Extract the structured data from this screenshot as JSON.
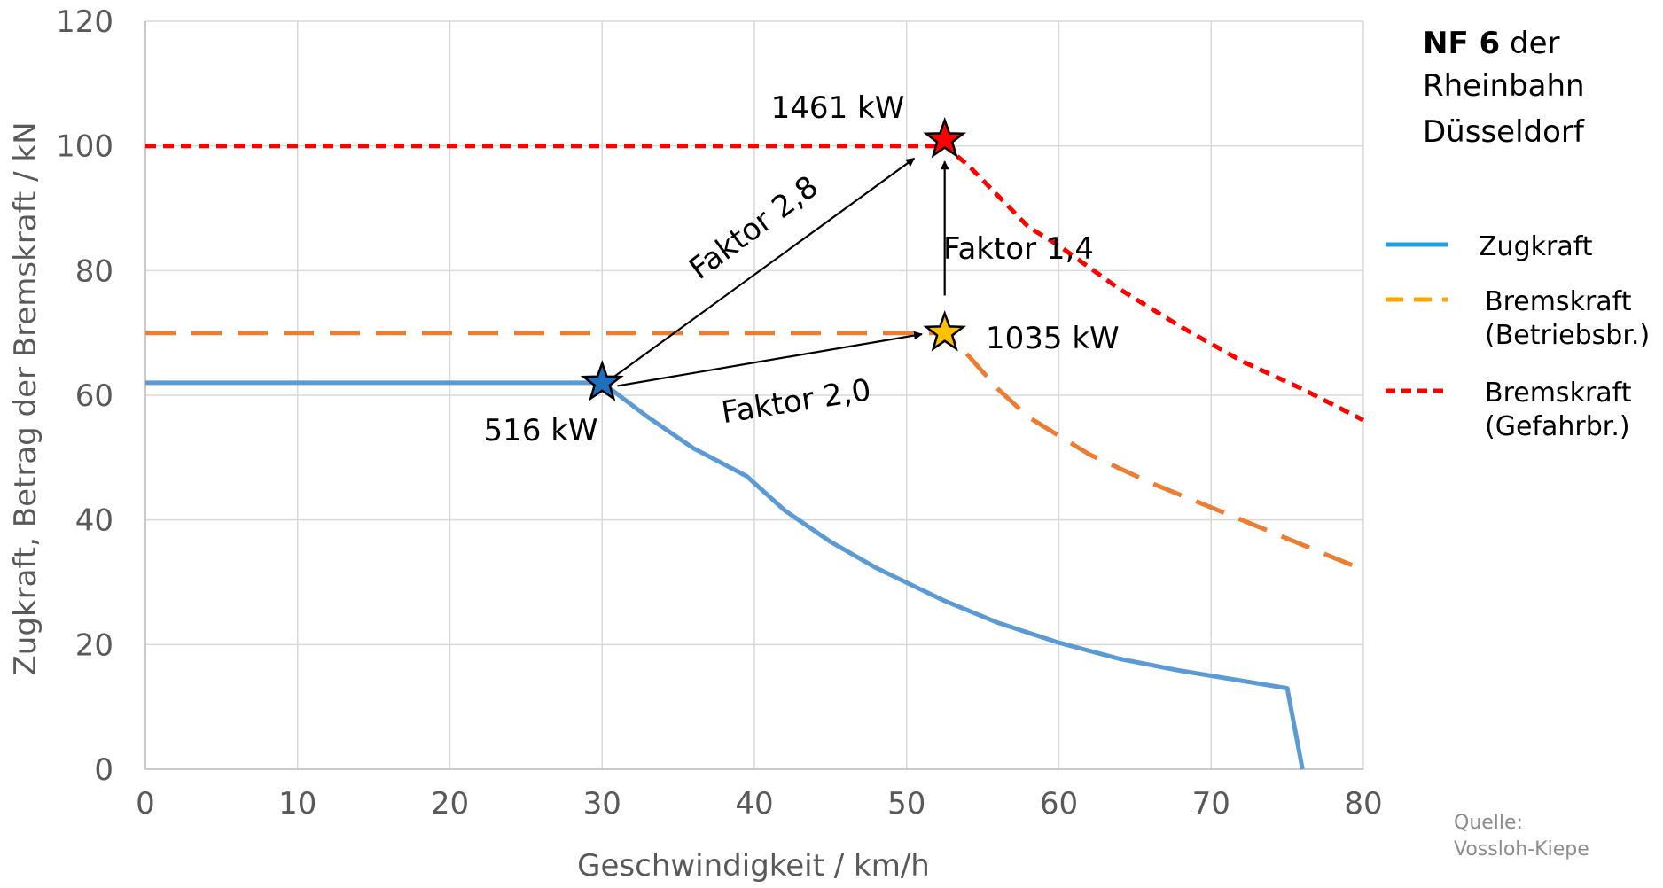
{
  "chart_data": {
    "type": "line",
    "title": "",
    "xlabel": "Geschwindigkeit / km/h",
    "ylabel": "Zugkraft, Betrag der Bremskraft / kN",
    "xlim": [
      0,
      80
    ],
    "ylim": [
      0,
      120
    ],
    "xticks": [
      "0",
      "10",
      "20",
      "30",
      "40",
      "50",
      "60",
      "70",
      "80"
    ],
    "yticks": [
      "0",
      "20",
      "40",
      "60",
      "80",
      "100",
      "120"
    ],
    "grid": true,
    "legend_position": "right",
    "vehicle_title": {
      "bold": "NF 6",
      "rest": " der",
      "line2": "Rheinbahn",
      "line3": "Düsseldorf"
    },
    "source": {
      "line1": "Quelle:",
      "line2": "Vossloh-Kiepe"
    },
    "legend": [
      {
        "series": "zugkraft",
        "label_lines": [
          "Zugkraft"
        ],
        "color": "#1ba1e2",
        "dash": "solid"
      },
      {
        "series": "bremskraft_betrieb",
        "label_lines": [
          "Bremskraft",
          "(Betriebsbr.)"
        ],
        "color": "#ffa500",
        "dash": "long"
      },
      {
        "series": "bremskraft_gefahr",
        "label_lines": [
          "Bremskraft",
          "(Gefahrbr.)"
        ],
        "color": "#ff0000",
        "dash": "short"
      }
    ],
    "series": [
      {
        "key": "zugkraft",
        "color": "#5b9bd5",
        "points": [
          [
            0,
            62
          ],
          [
            30,
            62
          ],
          [
            33,
            56.5
          ],
          [
            36,
            51.5
          ],
          [
            39.5,
            47
          ],
          [
            42,
            41.5
          ],
          [
            45,
            36.5
          ],
          [
            48,
            32.3
          ],
          [
            52.5,
            27
          ],
          [
            56,
            23.5
          ],
          [
            60,
            20.3
          ],
          [
            64,
            17.7
          ],
          [
            68,
            15.8
          ],
          [
            72,
            14.2
          ],
          [
            75,
            13
          ],
          [
            76,
            0
          ]
        ]
      },
      {
        "key": "bremskraft_betrieb",
        "color": "#ed7d31",
        "points": [
          [
            0,
            70
          ],
          [
            52.5,
            70
          ],
          [
            54,
            66.5
          ],
          [
            56,
            61
          ],
          [
            58,
            56.5
          ],
          [
            62,
            50.5
          ],
          [
            66,
            46
          ],
          [
            70,
            42
          ],
          [
            74,
            38
          ],
          [
            78,
            34
          ],
          [
            80,
            32
          ]
        ]
      },
      {
        "key": "bremskraft_gefahr",
        "color": "#ff0000",
        "points": [
          [
            0,
            100
          ],
          [
            52.5,
            100
          ],
          [
            54,
            97
          ],
          [
            56,
            92
          ],
          [
            58,
            87
          ],
          [
            60,
            84
          ],
          [
            64,
            77
          ],
          [
            68,
            71
          ],
          [
            72,
            65.5
          ],
          [
            76,
            61
          ],
          [
            80,
            56
          ]
        ]
      }
    ],
    "markers": [
      {
        "x": 30,
        "y": 62,
        "color": "#1f6fbf",
        "label": "516 kW"
      },
      {
        "x": 52.5,
        "y": 70,
        "color": "#ffc000",
        "label": "1035 kW"
      },
      {
        "x": 52.5,
        "y": 101,
        "color": "#ff0000",
        "label": "1461 kW"
      }
    ],
    "arrows": [
      {
        "from": [
          30.8,
          63
        ],
        "to": [
          50.5,
          98
        ],
        "label": "Faktor 2,8"
      },
      {
        "from": [
          31,
          61.5
        ],
        "to": [
          51,
          69.8
        ],
        "label": "Faktor 2,0"
      },
      {
        "from": [
          52.5,
          76
        ],
        "to": [
          52.5,
          97.5
        ],
        "label": "Faktor 1,4"
      }
    ]
  }
}
